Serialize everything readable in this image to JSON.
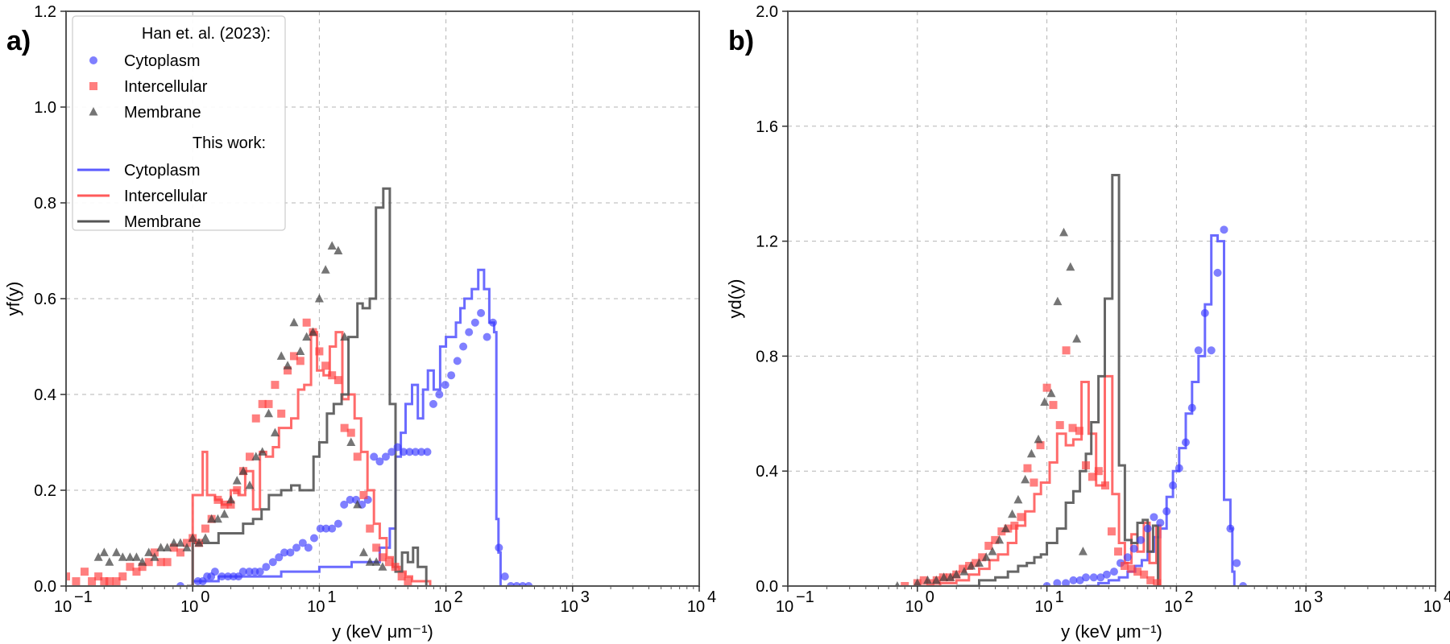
{
  "chart_data": [
    {
      "type": "scatter",
      "panel_label": "a)",
      "xlabel": "y (keV μm⁻¹)",
      "ylabel": "yf(y)",
      "xscale": "log",
      "xlim": [
        0.1,
        10000
      ],
      "ylim": [
        0,
        1.2
      ],
      "x_ticks": [
        0.1,
        1,
        10,
        100,
        1000,
        10000
      ],
      "x_tick_labels": [
        "10",
        "10",
        "10",
        "10",
        "10",
        "10"
      ],
      "x_tick_exponents": [
        "−1",
        "0",
        "1",
        "2",
        "3",
        "4"
      ],
      "y_ticks": [
        0,
        0.2,
        0.4,
        0.6,
        0.8,
        1.0,
        1.2
      ],
      "y_tick_labels": [
        "0.0",
        "0.2",
        "0.4",
        "0.6",
        "0.8",
        "1.0",
        "1.2"
      ],
      "grid": true,
      "legend": {
        "placement": "upper-left",
        "header1": "Han et. al. (2023):",
        "header2": "This work:",
        "marker_labels": [
          "Cytoplasm",
          "Intercellular",
          "Membrane"
        ],
        "line_labels": [
          "Cytoplasm",
          "Intercellular",
          "Membrane"
        ]
      },
      "series": [
        {
          "name": "Cytoplasm",
          "kind": "scatter",
          "marker": "circle",
          "color": "#3b3bff",
          "x": [
            0.8,
            1.1,
            1.2,
            1.3,
            1.4,
            1.5,
            1.7,
            1.9,
            2.1,
            2.3,
            2.5,
            2.8,
            3.1,
            3.4,
            3.8,
            4.3,
            4.8,
            5.3,
            5.9,
            6.6,
            7.4,
            8.2,
            9.1,
            10.2,
            11.3,
            12.6,
            14.1,
            15.7,
            17.5,
            19.5,
            21.7,
            24.2,
            27.0,
            30.0,
            33.5,
            37.3,
            41.5,
            46.3,
            51.6,
            57.5,
            64.0,
            71.3,
            79.5,
            88.6,
            98.7,
            110,
            123,
            137,
            152,
            170,
            189,
            211,
            235,
            262,
            292,
            325,
            362,
            404,
            450
          ],
          "y": [
            0.0,
            0.01,
            0.01,
            0.02,
            0.02,
            0.03,
            0.02,
            0.02,
            0.02,
            0.02,
            0.03,
            0.03,
            0.03,
            0.03,
            0.04,
            0.05,
            0.06,
            0.07,
            0.07,
            0.08,
            0.09,
            0.08,
            0.1,
            0.12,
            0.12,
            0.12,
            0.13,
            0.17,
            0.18,
            0.18,
            0.17,
            0.18,
            0.27,
            0.26,
            0.27,
            0.28,
            0.29,
            0.28,
            0.28,
            0.28,
            0.28,
            0.28,
            0.38,
            0.4,
            0.42,
            0.44,
            0.47,
            0.5,
            0.53,
            0.55,
            0.57,
            0.52,
            0.55,
            0.08,
            0.02,
            0.0,
            0.0,
            0.0,
            0.0
          ]
        },
        {
          "name": "Intercellular",
          "kind": "scatter",
          "marker": "square",
          "color": "#ff3b3b",
          "x": [
            0.1,
            0.12,
            0.14,
            0.16,
            0.18,
            0.2,
            0.22,
            0.25,
            0.28,
            0.32,
            0.36,
            0.4,
            0.45,
            0.5,
            0.56,
            0.63,
            0.71,
            0.8,
            0.9,
            1.0,
            1.12,
            1.26,
            1.41,
            1.58,
            1.78,
            2.0,
            2.24,
            2.51,
            2.82,
            3.16,
            3.55,
            3.98,
            4.47,
            5.01,
            5.62,
            6.31,
            7.08,
            7.94,
            8.91,
            10.0,
            11.2,
            12.6,
            14.1,
            15.8,
            17.8,
            20.0,
            22.4,
            25.1,
            28.2,
            31.6,
            35.5,
            39.8,
            44.7,
            50.1
          ],
          "y": [
            0.02,
            0.01,
            0.03,
            0.01,
            0.02,
            0.01,
            0.01,
            0.01,
            0.02,
            0.04,
            0.03,
            0.04,
            0.05,
            0.07,
            0.05,
            0.05,
            0.08,
            0.07,
            0.09,
            0.1,
            0.09,
            0.12,
            0.14,
            0.18,
            0.17,
            0.17,
            0.2,
            0.24,
            0.27,
            0.35,
            0.38,
            0.38,
            0.42,
            0.36,
            0.45,
            0.48,
            0.47,
            0.55,
            0.53,
            0.49,
            0.46,
            0.44,
            0.43,
            0.33,
            0.32,
            0.27,
            0.19,
            0.12,
            0.08,
            0.06,
            0.05,
            0.04,
            0.02,
            0.01
          ]
        },
        {
          "name": "Membrane",
          "kind": "scatter",
          "marker": "triangle",
          "color": "#3a3a3a",
          "x": [
            0.18,
            0.2,
            0.22,
            0.25,
            0.28,
            0.32,
            0.36,
            0.4,
            0.45,
            0.5,
            0.56,
            0.63,
            0.71,
            0.8,
            0.9,
            1.0,
            1.12,
            1.26,
            1.41,
            1.58,
            1.78,
            2.0,
            2.24,
            2.51,
            2.82,
            3.16,
            3.55,
            3.98,
            4.47,
            5.01,
            5.62,
            6.31,
            7.08,
            7.94,
            8.91,
            10.0,
            11.2,
            12.6,
            14.1,
            15.8,
            17.8,
            20.0,
            22.4,
            25.1,
            28.2,
            31.6
          ],
          "y": [
            0.06,
            0.07,
            0.05,
            0.07,
            0.06,
            0.06,
            0.06,
            0.05,
            0.07,
            0.06,
            0.08,
            0.08,
            0.09,
            0.09,
            0.08,
            0.1,
            0.09,
            0.1,
            0.14,
            0.14,
            0.15,
            0.18,
            0.22,
            0.24,
            0.21,
            0.27,
            0.28,
            0.36,
            0.32,
            0.48,
            0.46,
            0.55,
            0.49,
            0.52,
            0.53,
            0.6,
            0.66,
            0.71,
            0.7,
            0.52,
            0.3,
            0.17,
            0.07,
            0.05,
            0.05,
            0.04
          ]
        },
        {
          "name": "Cytoplasm",
          "kind": "step",
          "color": "#5b5bff",
          "x": [
            0.9,
            1.0,
            1.6,
            2.5,
            4.0,
            5.0,
            7.0,
            10,
            14,
            18,
            22,
            26,
            30,
            36,
            40,
            44,
            48,
            54,
            60,
            66,
            72,
            80,
            90,
            100,
            110,
            120,
            130,
            140,
            160,
            180,
            200,
            220,
            240,
            250,
            260,
            270
          ],
          "y": [
            0.0,
            0.01,
            0.02,
            0.02,
            0.02,
            0.03,
            0.03,
            0.04,
            0.04,
            0.05,
            0.05,
            0.05,
            0.08,
            0.12,
            0.27,
            0.32,
            0.38,
            0.42,
            0.35,
            0.41,
            0.45,
            0.41,
            0.5,
            0.52,
            0.52,
            0.55,
            0.58,
            0.6,
            0.62,
            0.66,
            0.62,
            0.55,
            0.53,
            0.14,
            0.07,
            0.0
          ]
        },
        {
          "name": "Intercellular",
          "kind": "step",
          "color": "#ff5b5b",
          "x": [
            0.9,
            1.0,
            1.2,
            1.3,
            1.5,
            1.7,
            2.0,
            2.3,
            2.6,
            3.0,
            3.4,
            3.8,
            4.3,
            4.8,
            5.4,
            6.0,
            6.8,
            7.6,
            8.6,
            9.6,
            10.8,
            12.1,
            13.5,
            15.2,
            17.0,
            19.0,
            21.4,
            24.0,
            27.0,
            30.0,
            34.0,
            38.0,
            43.0,
            48.0,
            54.0,
            60.0,
            67.0,
            75.0
          ],
          "y": [
            0.0,
            0.19,
            0.28,
            0.19,
            0.18,
            0.17,
            0.2,
            0.19,
            0.24,
            0.16,
            0.28,
            0.27,
            0.29,
            0.33,
            0.33,
            0.35,
            0.41,
            0.42,
            0.53,
            0.45,
            0.44,
            0.5,
            0.53,
            0.39,
            0.4,
            0.35,
            0.28,
            0.2,
            0.13,
            0.1,
            0.06,
            0.04,
            0.03,
            0.02,
            0.01,
            0.01,
            0.01,
            0.0
          ]
        },
        {
          "name": "Membrane",
          "kind": "step",
          "color": "#555555",
          "x": [
            0.9,
            1.0,
            1.3,
            1.6,
            2.0,
            2.5,
            3.0,
            3.5,
            4.0,
            5.0,
            6.0,
            7.0,
            8.0,
            9.0,
            10.0,
            11.5,
            13.0,
            15.0,
            17.0,
            20.0,
            22.0,
            25.0,
            28.0,
            32.0,
            36.0,
            40.0,
            45.0,
            50.0,
            55.0,
            60.0,
            70.0
          ],
          "y": [
            0.0,
            0.09,
            0.09,
            0.11,
            0.11,
            0.13,
            0.14,
            0.16,
            0.19,
            0.2,
            0.21,
            0.2,
            0.2,
            0.27,
            0.3,
            0.36,
            0.38,
            0.4,
            0.52,
            0.59,
            0.58,
            0.6,
            0.79,
            0.83,
            0.38,
            0.03,
            0.07,
            0.05,
            0.08,
            0.04,
            0.0
          ]
        }
      ]
    },
    {
      "type": "scatter",
      "panel_label": "b)",
      "xlabel": "y (keV μm⁻¹)",
      "ylabel": "yd(y)",
      "xscale": "log",
      "xlim": [
        0.1,
        10000
      ],
      "ylim": [
        0,
        2.0
      ],
      "x_ticks": [
        0.1,
        1,
        10,
        100,
        1000,
        10000
      ],
      "x_tick_labels": [
        "10",
        "10",
        "10",
        "10",
        "10",
        "10"
      ],
      "x_tick_exponents": [
        "−1",
        "0",
        "1",
        "2",
        "3",
        "4"
      ],
      "y_ticks": [
        0,
        0.4,
        0.8,
        1.2,
        1.6,
        2.0
      ],
      "y_tick_labels": [
        "0.0",
        "0.4",
        "0.8",
        "1.2",
        "1.6",
        "2.0"
      ],
      "grid": true,
      "series": [
        {
          "name": "Cytoplasm",
          "kind": "scatter",
          "marker": "circle",
          "color": "#3b3bff",
          "x": [
            10,
            12,
            14,
            16,
            18,
            20,
            23,
            26,
            29,
            33,
            37,
            42,
            47,
            53,
            60,
            67,
            75,
            84,
            94,
            105,
            118,
            132,
            148,
            166,
            186,
            208,
            233,
            261,
            292,
            327
          ],
          "y": [
            0.0,
            0.01,
            0.01,
            0.02,
            0.02,
            0.03,
            0.03,
            0.03,
            0.04,
            0.05,
            0.08,
            0.1,
            0.13,
            0.16,
            0.2,
            0.24,
            0.22,
            0.26,
            0.35,
            0.41,
            0.5,
            0.62,
            0.82,
            0.95,
            0.82,
            1.09,
            1.24,
            0.2,
            0.08,
            0.0
          ]
        },
        {
          "name": "Intercellular",
          "kind": "scatter",
          "marker": "square",
          "color": "#ff3b3b",
          "x": [
            0.8,
            1.0,
            1.12,
            1.26,
            1.41,
            1.58,
            1.78,
            2.0,
            2.24,
            2.51,
            2.82,
            3.16,
            3.55,
            3.98,
            4.47,
            5.01,
            5.62,
            6.31,
            7.08,
            7.94,
            8.91,
            10.0,
            11.2,
            12.6,
            14.1,
            15.8,
            17.8,
            20.0,
            22.4,
            25.1,
            28.2,
            31.6,
            35.5,
            39.8,
            44.7,
            50.1,
            56.2,
            63.1,
            70.8
          ],
          "y": [
            0.0,
            0.01,
            0.02,
            0.01,
            0.02,
            0.03,
            0.03,
            0.04,
            0.06,
            0.07,
            0.08,
            0.1,
            0.14,
            0.16,
            0.19,
            0.2,
            0.21,
            0.24,
            0.41,
            0.36,
            0.49,
            0.69,
            0.63,
            0.56,
            0.82,
            0.55,
            0.54,
            0.42,
            0.38,
            0.4,
            0.35,
            0.19,
            0.12,
            0.07,
            0.06,
            0.05,
            0.04,
            0.02,
            0.01
          ]
        },
        {
          "name": "Membrane",
          "kind": "scatter",
          "marker": "triangle",
          "color": "#3a3a3a",
          "x": [
            0.7,
            1.0,
            1.2,
            1.4,
            1.6,
            1.8,
            2.0,
            2.3,
            2.6,
            3.0,
            3.4,
            3.8,
            4.3,
            4.8,
            5.4,
            6.0,
            6.8,
            7.6,
            8.6,
            9.6,
            10.8,
            12.1,
            13.5,
            15.2,
            17.0,
            19.0
          ],
          "y": [
            0.0,
            0.01,
            0.02,
            0.02,
            0.03,
            0.03,
            0.04,
            0.05,
            0.07,
            0.08,
            0.1,
            0.12,
            0.16,
            0.2,
            0.25,
            0.3,
            0.37,
            0.46,
            0.51,
            0.64,
            0.67,
            0.99,
            1.23,
            1.11,
            0.86,
            0.12
          ]
        },
        {
          "name": "Cytoplasm",
          "kind": "step",
          "color": "#5b5bff",
          "x": [
            20,
            25,
            30,
            36,
            42,
            48,
            54,
            60,
            67,
            75,
            84,
            94,
            105,
            118,
            132,
            148,
            166,
            186,
            208,
            233,
            261,
            270,
            280
          ],
          "y": [
            0.0,
            0.01,
            0.02,
            0.03,
            0.05,
            0.07,
            0.09,
            0.12,
            0.17,
            0.2,
            0.31,
            0.4,
            0.48,
            0.6,
            0.71,
            0.8,
            0.98,
            1.22,
            1.2,
            0.3,
            0.2,
            0.05,
            0.0
          ]
        },
        {
          "name": "Intercellular",
          "kind": "step",
          "color": "#ff5b5b",
          "x": [
            1.0,
            1.5,
            2.0,
            2.5,
            3.0,
            3.6,
            4.2,
            5.0,
            5.8,
            6.8,
            8.0,
            9.0,
            10.5,
            12.0,
            14.0,
            16.0,
            18.5,
            21.0,
            24.0,
            28.0,
            32.0,
            36.0,
            40.0,
            45.0,
            50.0,
            56.0,
            62.0,
            70.0,
            75.0
          ],
          "y": [
            0.0,
            0.01,
            0.02,
            0.04,
            0.06,
            0.09,
            0.11,
            0.15,
            0.21,
            0.26,
            0.32,
            0.36,
            0.43,
            0.53,
            0.49,
            0.51,
            0.71,
            0.53,
            0.35,
            0.73,
            0.32,
            0.15,
            0.08,
            0.18,
            0.12,
            0.22,
            0.08,
            0.21,
            0.0
          ]
        },
        {
          "name": "Membrane",
          "kind": "step",
          "color": "#555555",
          "x": [
            2.0,
            3.0,
            4.0,
            5.0,
            6.0,
            7.0,
            8.0,
            9.0,
            10.0,
            12.0,
            14.0,
            16.0,
            18.0,
            20.0,
            22.0,
            25.0,
            28.0,
            32.0,
            36.0,
            40.0,
            45.0,
            50.0,
            55.0,
            60.0,
            66.0,
            72.0
          ],
          "y": [
            0.0,
            0.02,
            0.03,
            0.05,
            0.07,
            0.08,
            0.1,
            0.11,
            0.15,
            0.2,
            0.29,
            0.33,
            0.4,
            0.46,
            0.57,
            0.73,
            1.0,
            1.43,
            0.42,
            0.16,
            0.15,
            0.22,
            0.23,
            0.12,
            0.21,
            0.0
          ]
        }
      ]
    }
  ]
}
